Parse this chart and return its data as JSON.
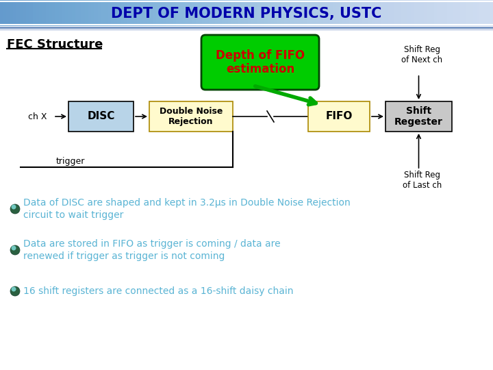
{
  "title": "DEPT OF MODERN PHYSICS, USTC",
  "title_bg_left": "#aaaadd",
  "title_bg_center": "#ccccff",
  "title_color": "#0000aa",
  "bg_color": "#ffffff",
  "fec_label": "FEC Structure",
  "chx_label": "ch X",
  "disc_label": "DISC",
  "disc_box_color": "#b8d4e8",
  "dnr_label": "Double Noise\nRejection",
  "dnr_box_color": "#fffacd",
  "fifo_label": "FIFO",
  "fifo_box_color": "#fffacd",
  "shift_reg_label": "Shift\nRegester",
  "shift_reg_box_color": "#c8c8c8",
  "depth_fifo_label": "Depth of FIFO\nestimation",
  "depth_fifo_bg": "#00cc00",
  "depth_fifo_text_color": "#cc0000",
  "trigger_label": "trigger",
  "shift_next_label": "Shift Reg\nof Next ch",
  "shift_last_label": "Shift Reg\nof Last ch",
  "bullet_color_outer": "#2d7a5a",
  "bullet_color_inner": "#5bc8c0",
  "text_color": "#5ab4d4",
  "bullet_points": [
    "Data of DISC are shaped and kept in 3.2μs in Double Noise Rejection circuit to wait trigger",
    "Data are stored in FIFO as trigger is coming / data are\nrenewed if trigger as trigger is not coming",
    "16 shift registers are connected as a 16-shift daisy chain"
  ]
}
